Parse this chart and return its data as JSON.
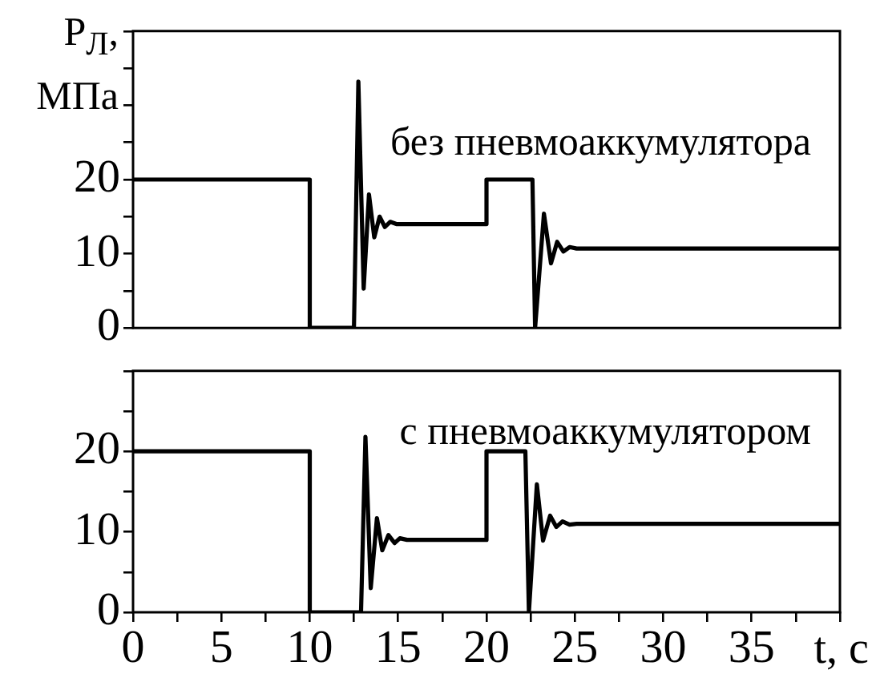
{
  "chart_data": [
    {
      "type": "line",
      "ylabel": "P$_{Л}$, МПа",
      "xlim": [
        0,
        40
      ],
      "ylim": [
        0,
        40
      ],
      "yticks": [
        0,
        {
          "value": 5,
          "label": null
        },
        10,
        {
          "value": 15,
          "label": null
        },
        20,
        {
          "value": 25,
          "label": null
        },
        {
          "value": 30,
          "label": null
        },
        {
          "value": 35,
          "label": null
        },
        {
          "value": 40,
          "label": null
        }
      ],
      "tick_labels": "y",
      "legend": false,
      "marker": "none",
      "series": [
        {
          "name": "без пневмоаккумулятора",
          "color": "#000000",
          "x": [
            0,
            10,
            10,
            12.5,
            12.75,
            13.05,
            13.35,
            13.65,
            13.95,
            14.25,
            14.55,
            14.9,
            20,
            20,
            22.6,
            22.75,
            23.25,
            23.65,
            24.0,
            24.35,
            24.7,
            25.1,
            40
          ],
          "values": [
            20,
            20,
            0,
            0,
            33.2,
            5.3,
            18,
            12.2,
            15,
            13.6,
            14.3,
            14,
            14,
            20,
            20,
            0,
            15.4,
            8.7,
            11.6,
            10.3,
            10.9,
            10.7,
            10.7
          ]
        }
      ]
    },
    {
      "type": "line",
      "xlabel": "t, с",
      "xlim": [
        0,
        40
      ],
      "xticks": [
        0,
        {
          "value": 2.5,
          "label": null
        },
        5,
        {
          "value": 7.5,
          "label": null
        },
        10,
        {
          "value": 12.5,
          "label": null
        },
        15,
        {
          "value": 17.5,
          "label": null
        },
        20,
        {
          "value": 22.5,
          "label": null
        },
        25,
        {
          "value": 27.5,
          "label": null
        },
        30,
        {
          "value": 32.5,
          "label": null
        },
        35,
        {
          "value": 37.5,
          "label": null
        },
        {
          "value": 40,
          "label": null
        }
      ],
      "ylim": [
        0,
        30
      ],
      "yticks": [
        0,
        {
          "value": 5,
          "label": null
        },
        10,
        {
          "value": 15,
          "label": null
        },
        20,
        {
          "value": 25,
          "label": null
        },
        {
          "value": 30,
          "label": null
        }
      ],
      "legend": false,
      "marker": "none",
      "series": [
        {
          "name": "с пневмоаккумулятором",
          "color": "#000000",
          "x": [
            0,
            10,
            10,
            12.9,
            13.15,
            13.45,
            13.8,
            14.1,
            14.45,
            14.8,
            15.1,
            15.5,
            20,
            20,
            22.2,
            22.4,
            22.85,
            23.2,
            23.6,
            23.95,
            24.3,
            24.7,
            25.1,
            40
          ],
          "values": [
            20,
            20,
            0,
            0,
            21.8,
            3,
            11.7,
            7.7,
            9.6,
            8.6,
            9.2,
            9,
            9,
            20,
            20,
            0,
            15.9,
            8.9,
            12,
            10.6,
            11.3,
            10.9,
            11,
            11
          ]
        }
      ]
    }
  ]
}
